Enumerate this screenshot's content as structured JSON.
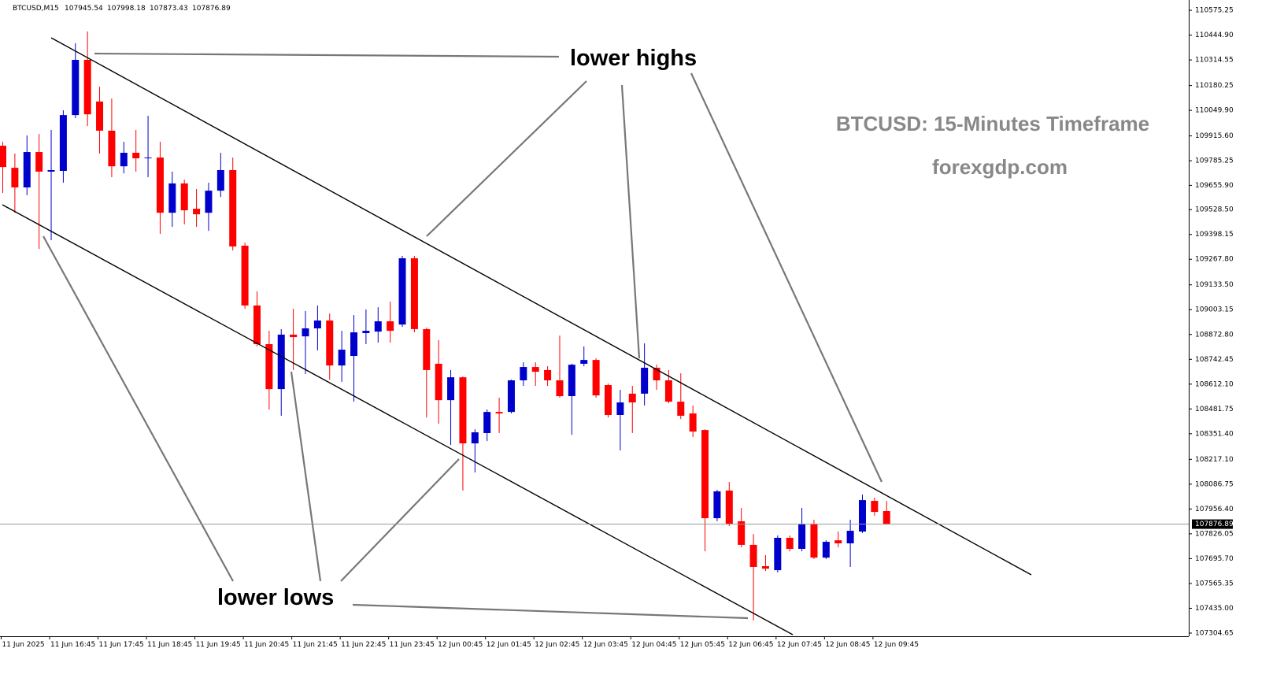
{
  "chart_data": {
    "type": "candlestick",
    "symbol": "BTCUSD,M15",
    "annotations": [
      "lower highs",
      "lower lows"
    ],
    "title": "BTCUSD: 15-Minutes Timeframe",
    "subtitle": "forexgdp.com",
    "up_color": "#0000cd",
    "down_color": "#ff0000",
    "categories": [
      "11 Jun 2025",
      null,
      null,
      null,
      "11 Jun 16:45",
      null,
      null,
      null,
      "11 Jun 17:45",
      null,
      null,
      null,
      "11 Jun 18:45",
      null,
      null,
      null,
      "11 Jun 19:45",
      null,
      null,
      null,
      "11 Jun 20:45",
      null,
      null,
      null,
      "11 Jun 21:45",
      null,
      null,
      null,
      "11 Jun 22:45",
      null,
      null,
      null,
      "11 Jun 23:45",
      null,
      null,
      null,
      "12 Jun 00:45",
      null,
      null,
      null,
      "12 Jun 01:45",
      null,
      null,
      null,
      "12 Jun 02:45",
      null,
      null,
      null,
      "12 Jun 03:45",
      null,
      null,
      null,
      "12 Jun 04:45",
      null,
      null,
      null,
      "12 Jun 05:45",
      null,
      null,
      null,
      "12 Jun 06:45",
      null,
      null,
      null,
      "12 Jun 07:45",
      null,
      null,
      null,
      "12 Jun 08:45",
      null,
      null,
      null,
      "12 Jun 09:45",
      null
    ],
    "open": [
      109864,
      109748,
      109645,
      109831,
      109728,
      109732,
      110025,
      110315,
      110096,
      109943,
      109756,
      109827,
      109798,
      109802,
      109512,
      109666,
      109533,
      109512,
      109628,
      109736,
      109339,
      109025,
      108822,
      108586,
      108872,
      108863,
      108905,
      108946,
      108710,
      108760,
      108880,
      108888,
      108942,
      108925,
      109273,
      108901,
      108719,
      108528,
      108648,
      108301,
      108355,
      108466,
      108466,
      108632,
      108702,
      108686,
      108632,
      108549,
      108719,
      108739,
      108607,
      108450,
      108562,
      108562,
      108698,
      108632,
      108520,
      108458,
      108371,
      107908,
      108053,
      107892,
      107768,
      107656,
      107635,
      107805,
      107747,
      107879,
      107701,
      107792,
      107776,
      107838,
      107999,
      107945.54
    ],
    "high": [
      109885,
      109823,
      109918,
      109926,
      109947,
      110050,
      110402,
      110464,
      110174,
      110112,
      109885,
      109947,
      110021,
      109885,
      109728,
      109686,
      109637,
      109670,
      109827,
      109802,
      109355,
      109099,
      108892,
      108901,
      109008,
      108996,
      109025,
      108983,
      108892,
      108975,
      109004,
      109016,
      109045,
      109285,
      109285,
      108909,
      108843,
      108686,
      108652,
      108375,
      108479,
      108541,
      108636,
      108727,
      108727,
      108706,
      108867,
      108719,
      108810,
      108748,
      108615,
      108582,
      108603,
      108826,
      108714,
      108686,
      108669,
      108500,
      108375,
      108057,
      108098,
      107962,
      107825,
      107714,
      107817,
      107817,
      107962,
      107900,
      107792,
      107838,
      107900,
      108032,
      108016,
      107998.18
    ],
    "low": [
      109616,
      109512,
      109604,
      109322,
      109368,
      109670,
      110009,
      109967,
      109823,
      109699,
      109719,
      109728,
      109699,
      109401,
      109438,
      109451,
      109438,
      109417,
      109595,
      109314,
      109008,
      108810,
      108479,
      108446,
      108686,
      108665,
      108789,
      108636,
      108624,
      108520,
      108822,
      108830,
      108830,
      108913,
      108884,
      108437,
      108404,
      108293,
      108053,
      108148,
      108313,
      108355,
      108458,
      108603,
      108603,
      108603,
      108541,
      108346,
      108706,
      108541,
      108437,
      108264,
      108355,
      108500,
      108582,
      108512,
      108429,
      108334,
      107734,
      107892,
      107867,
      107755,
      107371,
      107631,
      107623,
      107734,
      107734,
      107693,
      107693,
      107755,
      107652,
      107830,
      107921,
      107873.43
    ],
    "close": [
      109752,
      109645,
      109831,
      109728,
      109736,
      110025,
      110315,
      110029,
      109943,
      109756,
      109827,
      109798,
      109802,
      109512,
      109666,
      109525,
      109504,
      109628,
      109736,
      109335,
      109025,
      108822,
      108586,
      108872,
      108859,
      108905,
      108946,
      108710,
      108793,
      108884,
      108892,
      108942,
      108892,
      109273,
      108901,
      108686,
      108528,
      108648,
      108301,
      108359,
      108466,
      108458,
      108632,
      108702,
      108677,
      108632,
      108549,
      108714,
      108739,
      108553,
      108450,
      108516,
      108516,
      108698,
      108632,
      108520,
      108446,
      108363,
      107908,
      108049,
      107879,
      107768,
      107652,
      107643,
      107805,
      107747,
      107879,
      107701,
      107784,
      107776,
      107842,
      108003,
      107941,
      107876.89
    ],
    "ylim": [
      107288,
      110621
    ],
    "yticks": [
      110575.25,
      {
        "value": 110444.9,
        "label": "110444.90"
      },
      110314.55,
      110180.25,
      {
        "value": 110049.9,
        "label": "110049.90"
      },
      {
        "value": 109915.6,
        "label": "109915.60"
      },
      109785.25,
      {
        "value": 109655.9,
        "label": "109655.90"
      },
      {
        "value": 109528.5,
        "label": "109528.50"
      },
      109398.15,
      {
        "value": 109267.8,
        "label": "109267.80"
      },
      {
        "value": 109133.5,
        "label": "109133.50"
      },
      109003.15,
      {
        "value": 108872.8,
        "label": "108872.80"
      },
      108742.45,
      {
        "value": 108612.1,
        "label": "108612.10"
      },
      108481.75,
      {
        "value": 108351.4,
        "label": "108351.40"
      },
      {
        "value": 108217.1,
        "label": "108217.10"
      },
      108086.75,
      {
        "value": 107956.4,
        "label": "107956.40"
      },
      107826.05,
      {
        "value": 107695.7,
        "label": "107695.70"
      },
      107565.35,
      {
        "value": 107435,
        "label": "107435.00"
      },
      107304.65
    ]
  }
}
